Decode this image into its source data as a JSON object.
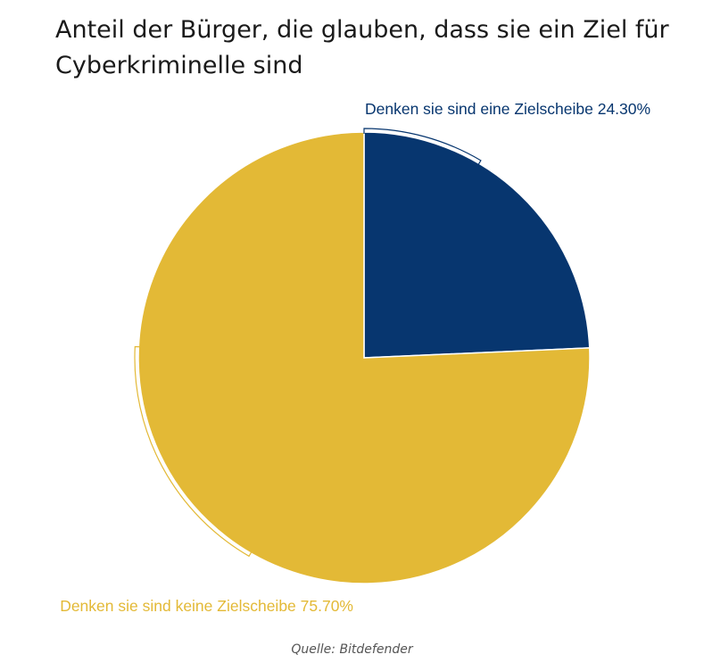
{
  "chart_data": {
    "type": "pie",
    "title": "Anteil der Bürger, die glauben, dass sie ein Ziel für Cyberkriminelle sind",
    "slices": [
      {
        "label": "Denken sie sind eine Zielscheibe",
        "value": 24.3,
        "value_label": "24.30%",
        "color": "#07366f"
      },
      {
        "label": "Denken sie sind keine Zielscheibe",
        "value": 75.7,
        "value_label": "75.70%",
        "color": "#e3b936"
      }
    ]
  },
  "source": "Quelle: Bitdefender"
}
